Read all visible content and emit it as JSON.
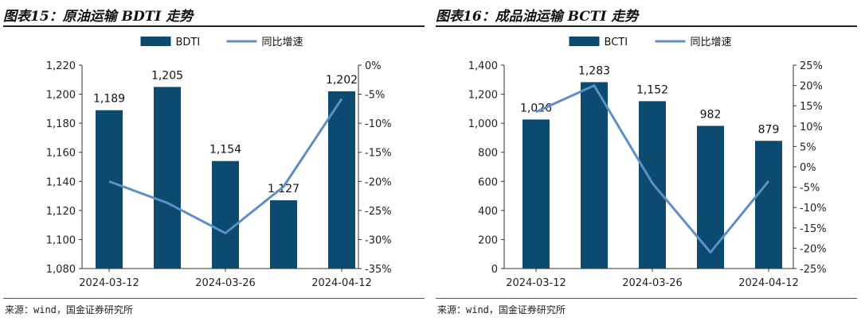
{
  "charts": [
    {
      "figure_title": "图表15：原油运输 BDTI 走势",
      "source": "来源：wind，国金证券研究所"
    },
    {
      "figure_title": "图表16：成品油运输 BCTI 走势",
      "source": "来源：wind，国金证券研究所"
    }
  ],
  "chart_data": [
    {
      "type": "bar+line",
      "bar_series_name": "BDTI",
      "line_series_name": "同比增速",
      "values": [
        1189,
        1205,
        1154,
        1127,
        1202
      ],
      "value_labels": [
        "1,189",
        "1,205",
        "1,154",
        "1,127",
        "1,202"
      ],
      "line_values": [
        -20.0,
        -23.7,
        -28.9,
        -20.9,
        -5.8
      ],
      "x_tick_labels": [
        "2024-03-12",
        "2024-03-26",
        "2024-04-12"
      ],
      "x_tick_at_bar": [
        0,
        2,
        4
      ],
      "ylim_left": [
        1080,
        1220
      ],
      "yticks_left": [
        1080,
        1100,
        1120,
        1140,
        1160,
        1180,
        1200,
        1220
      ],
      "ytick_labels_left": [
        "1,080",
        "1,100",
        "1,120",
        "1,140",
        "1,160",
        "1,180",
        "1,200",
        "1,220"
      ],
      "ylim_right": [
        -35,
        0
      ],
      "yticks_right": [
        -35,
        -30,
        -25,
        -20,
        -15,
        -10,
        -5,
        0
      ],
      "ytick_labels_right": [
        "-35%",
        "-30%",
        "-25%",
        "-20%",
        "-15%",
        "-10%",
        "-5%",
        "0%"
      ],
      "legend_position": "top",
      "colors": {
        "bar": "#0d4a70",
        "line": "#5b8fc9"
      }
    },
    {
      "type": "bar+line",
      "bar_series_name": "BCTI",
      "line_series_name": "同比增速",
      "values": [
        1026,
        1283,
        1152,
        982,
        879
      ],
      "value_labels": [
        "1,026",
        "1,283",
        "1,152",
        "982",
        "879"
      ],
      "line_values": [
        13.5,
        20.0,
        -4.0,
        -21.0,
        -3.5
      ],
      "x_tick_labels": [
        "2024-03-12",
        "2024-03-26",
        "2024-04-12"
      ],
      "x_tick_at_bar": [
        0,
        2,
        4
      ],
      "ylim_left": [
        0,
        1400
      ],
      "yticks_left": [
        0,
        200,
        400,
        600,
        800,
        1000,
        1200,
        1400
      ],
      "ytick_labels_left": [
        "0",
        "200",
        "400",
        "600",
        "800",
        "1,000",
        "1,200",
        "1,400"
      ],
      "ylim_right": [
        -25,
        25
      ],
      "yticks_right": [
        -25,
        -20,
        -15,
        -10,
        -5,
        0,
        5,
        10,
        15,
        20,
        25
      ],
      "ytick_labels_right": [
        "-25%",
        "-20%",
        "-15%",
        "-10%",
        "-5%",
        "0%",
        "5%",
        "10%",
        "15%",
        "20%",
        "25%"
      ],
      "legend_position": "top",
      "colors": {
        "bar": "#0d4a70",
        "line": "#5b8fc9"
      }
    }
  ]
}
